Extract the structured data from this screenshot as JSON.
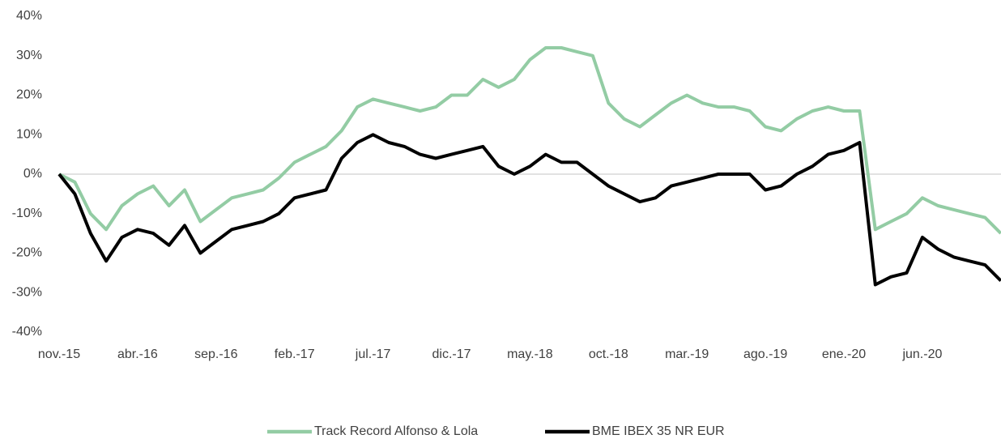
{
  "chart_data": {
    "type": "line",
    "categories": [
      "nov.-15",
      null,
      null,
      null,
      null,
      "abr.-16",
      null,
      null,
      null,
      null,
      "sep.-16",
      null,
      null,
      null,
      null,
      "feb.-17",
      null,
      null,
      null,
      null,
      "jul.-17",
      null,
      null,
      null,
      null,
      "dic.-17",
      null,
      null,
      null,
      null,
      "may.-18",
      null,
      null,
      null,
      null,
      "oct.-18",
      null,
      null,
      null,
      null,
      "mar.-19",
      null,
      null,
      null,
      null,
      "ago.-19",
      null,
      null,
      null,
      null,
      "ene.-20",
      null,
      null,
      null,
      null,
      "jun.-20",
      null,
      null,
      null,
      null,
      null
    ],
    "series": [
      {
        "name": "Track Record Alfonso & Lola",
        "color": "#93cca4",
        "values": [
          0,
          -2,
          -10,
          -14,
          -8,
          -5,
          -3,
          -8,
          -4,
          -12,
          -9,
          -6,
          -5,
          -4,
          -1,
          3,
          5,
          7,
          11,
          17,
          19,
          18,
          17,
          16,
          17,
          20,
          20,
          24,
          22,
          24,
          29,
          32,
          32,
          31,
          30,
          18,
          14,
          12,
          15,
          18,
          20,
          18,
          17,
          17,
          16,
          12,
          11,
          14,
          16,
          17,
          16,
          16,
          -14,
          -12,
          -10,
          -6,
          -8,
          -9,
          -10,
          -11,
          -15
        ]
      },
      {
        "name": "BME IBEX 35 NR EUR",
        "color": "#000000",
        "values": [
          0,
          -5,
          -15,
          -22,
          -16,
          -14,
          -15,
          -18,
          -13,
          -20,
          -17,
          -14,
          -13,
          -12,
          -10,
          -6,
          -5,
          -4,
          4,
          8,
          10,
          8,
          7,
          5,
          4,
          5,
          6,
          7,
          2,
          0,
          2,
          5,
          3,
          3,
          0,
          -3,
          -5,
          -7,
          -6,
          -3,
          -2,
          -1,
          0,
          0,
          0,
          -4,
          -3,
          0,
          2,
          5,
          6,
          8,
          -28,
          -26,
          -25,
          -16,
          -19,
          -21,
          -22,
          -23,
          -27
        ]
      }
    ],
    "ylim": [
      -40,
      40
    ],
    "yticks": [
      {
        "value": -40,
        "label": "-40%"
      },
      {
        "value": -30,
        "label": "-30%"
      },
      {
        "value": -20,
        "label": "-20%"
      },
      {
        "value": -10,
        "label": "-10%"
      },
      {
        "value": 0,
        "label": "0%"
      },
      {
        "value": 10,
        "label": "10%"
      },
      {
        "value": 20,
        "label": "20%"
      },
      {
        "value": 30,
        "label": "30%"
      },
      {
        "value": 40,
        "label": "40%"
      }
    ],
    "grid": false,
    "legend": "bottom"
  }
}
